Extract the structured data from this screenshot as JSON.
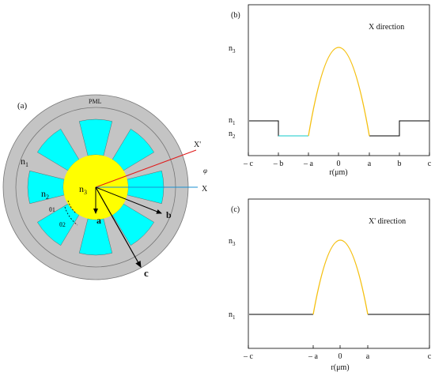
{
  "colors": {
    "fiber_gray": "#c4c4c4",
    "core_yellow": "#ffff00",
    "cladding_cyan": "#00ffff",
    "profile_yellow": "#f5c010",
    "profile_cyan": "#10c8c8",
    "axis_red": "#e01818",
    "axis_blue": "#1a8fd0",
    "line_black": "#000000"
  },
  "panel_a": {
    "label": "(a)",
    "pml": "PML",
    "n1": "n1",
    "n2": "n2",
    "n3": "n3",
    "x": "X",
    "x_prime": "X'",
    "phi": "φ",
    "theta1": "θ1",
    "theta2": "θ2",
    "a": "a",
    "b": "b",
    "c": "c",
    "air_hole_count": 8
  },
  "panel_b": {
    "label": "(b)",
    "title": "X direction",
    "xlabel": "r(μm)",
    "xticks": [
      "– c",
      "– b",
      "– a",
      "0",
      "a",
      "b",
      "c"
    ],
    "yticks": [
      "n3",
      "n1",
      "n2"
    ]
  },
  "panel_c": {
    "label": "(c)",
    "title": "X' direction",
    "xlabel": "r(μm)",
    "xticks": [
      "– c",
      "– a",
      "0",
      "a",
      "c"
    ],
    "yticks": [
      "n3",
      "n1"
    ]
  }
}
